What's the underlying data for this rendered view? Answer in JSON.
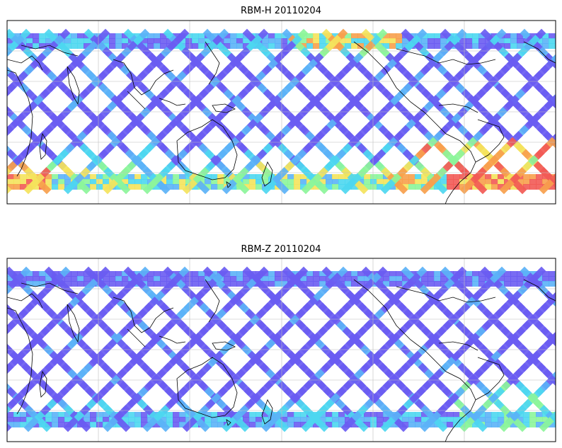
{
  "panels": [
    {
      "title": "RBM-H 20110204",
      "palette": "h"
    },
    {
      "title": "RBM-Z 20110204",
      "palette": "z"
    }
  ],
  "colors": {
    "frame": "#000000",
    "grid": "#bdbdbd",
    "coast": "#000000",
    "low": "#6a5cf2",
    "mid": "#5bb2f7",
    "cyan": "#4dd7f0",
    "green": "#8cf59a",
    "yellow": "#f4e35c",
    "orange": "#f7a04c",
    "red": "#f25a55"
  }
}
